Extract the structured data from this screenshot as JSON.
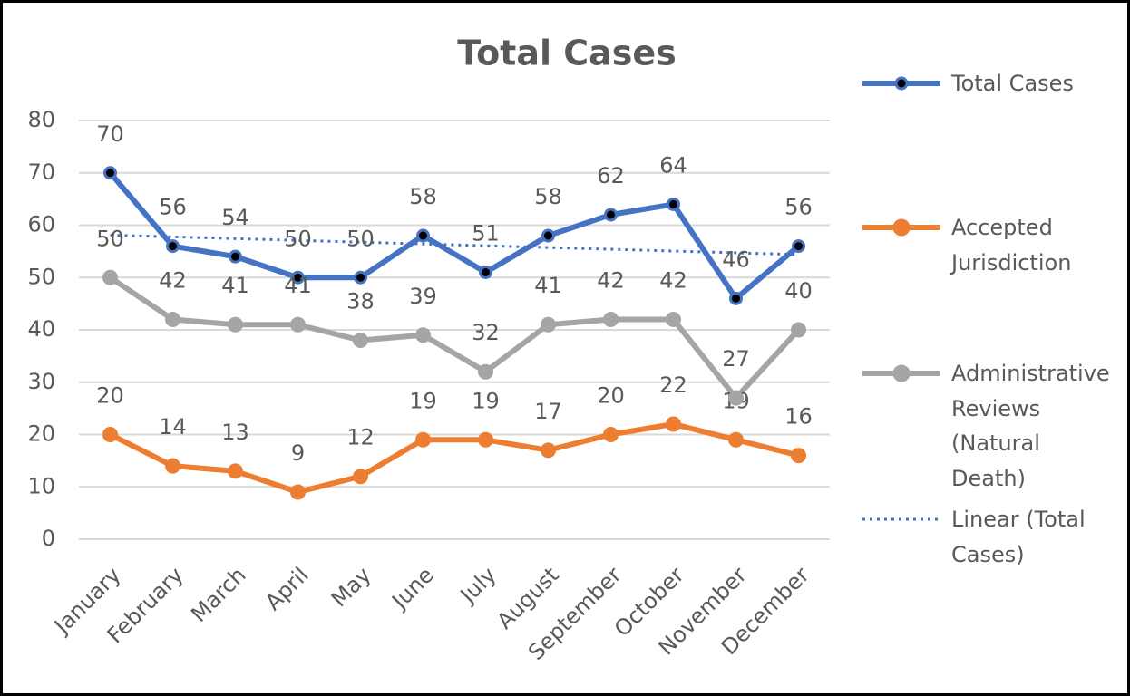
{
  "chart_data": {
    "type": "line",
    "title": "Total Cases",
    "categories": [
      "January",
      "February",
      "March",
      "April",
      "May",
      "June",
      "July",
      "August",
      "September",
      "October",
      "November",
      "December"
    ],
    "series": [
      {
        "name": "Total Cases",
        "color": "#4472c4",
        "marker_fill": "#000000",
        "values": [
          70,
          56,
          54,
          50,
          50,
          58,
          51,
          58,
          62,
          64,
          46,
          56
        ],
        "trendline": {
          "type": "linear",
          "name": "Linear (Total Cases)"
        }
      },
      {
        "name": "Accepted Jurisdiction",
        "color": "#ed7d31",
        "values": [
          20,
          14,
          13,
          9,
          12,
          19,
          19,
          17,
          20,
          22,
          19,
          16
        ]
      },
      {
        "name": "Administrative Reviews (Natural Death)",
        "color": "#a5a5a5",
        "values": [
          50,
          42,
          41,
          41,
          38,
          39,
          32,
          41,
          42,
          42,
          27,
          40
        ]
      }
    ],
    "ylim": [
      0,
      80
    ],
    "yticks": [
      0,
      10,
      20,
      30,
      40,
      50,
      60,
      70,
      80
    ],
    "grid": true,
    "legend": "right"
  }
}
